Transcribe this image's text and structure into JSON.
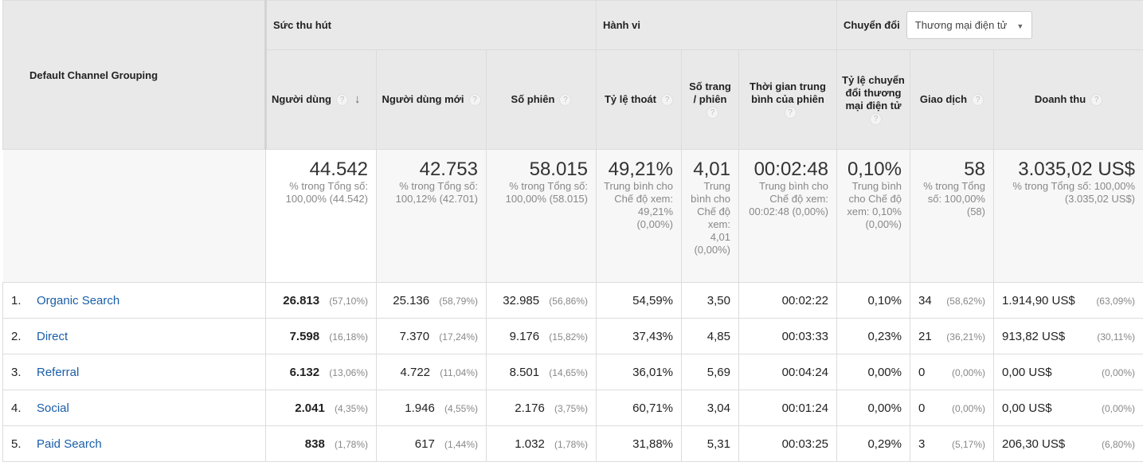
{
  "headers": {
    "dimension": "Default Channel Grouping",
    "groups": {
      "acquisition": "Sức thu hút",
      "behavior": "Hành vi",
      "conversion": "Chuyển đổi"
    },
    "conversion_select": "Thương mại điện tử",
    "columns": [
      "Người dùng",
      "Người dùng mới",
      "Số phiên",
      "Tỷ lệ thoát",
      "Số trang / phiên",
      "Thời gian trung bình của phiên",
      "Tỷ lệ chuyển đổi thương mại điện tử",
      "Giao dịch",
      "Doanh thu"
    ]
  },
  "totals": [
    {
      "value": "44.542",
      "sub": "% trong Tổng số: 100,00% (44.542)"
    },
    {
      "value": "42.753",
      "sub": "% trong Tổng số: 100,12% (42.701)"
    },
    {
      "value": "58.015",
      "sub": "% trong Tổng số: 100,00% (58.015)"
    },
    {
      "value": "49,21%",
      "sub": "Trung bình cho Chế độ xem: 49,21% (0,00%)"
    },
    {
      "value": "4,01",
      "sub": "Trung bình cho Chế độ xem: 4,01 (0,00%)"
    },
    {
      "value": "00:02:48",
      "sub": "Trung bình cho Chế độ xem: 00:02:48 (0,00%)"
    },
    {
      "value": "0,10%",
      "sub": "Trung bình cho Chế độ xem: 0,10% (0,00%)"
    },
    {
      "value": "58",
      "sub": "% trong Tổng số: 100,00% (58)"
    },
    {
      "value": "3.035,02 US$",
      "sub": "% trong Tổng số: 100,00% (3.035,02 US$)"
    }
  ],
  "rows": [
    {
      "idx": "1.",
      "name": "Organic Search",
      "users": "26.813",
      "users_pct": "(57,10%)",
      "new_users": "25.136",
      "new_users_pct": "(58,79%)",
      "sessions": "32.985",
      "sessions_pct": "(56,86%)",
      "bounce": "54,59%",
      "pages": "3,50",
      "duration": "00:02:22",
      "conv": "0,10%",
      "trans": "34",
      "trans_pct": "(58,62%)",
      "revenue": "1.914,90 US$",
      "revenue_pct": "(63,09%)"
    },
    {
      "idx": "2.",
      "name": "Direct",
      "users": "7.598",
      "users_pct": "(16,18%)",
      "new_users": "7.370",
      "new_users_pct": "(17,24%)",
      "sessions": "9.176",
      "sessions_pct": "(15,82%)",
      "bounce": "37,43%",
      "pages": "4,85",
      "duration": "00:03:33",
      "conv": "0,23%",
      "trans": "21",
      "trans_pct": "(36,21%)",
      "revenue": "913,82 US$",
      "revenue_pct": "(30,11%)"
    },
    {
      "idx": "3.",
      "name": "Referral",
      "users": "6.132",
      "users_pct": "(13,06%)",
      "new_users": "4.722",
      "new_users_pct": "(11,04%)",
      "sessions": "8.501",
      "sessions_pct": "(14,65%)",
      "bounce": "36,01%",
      "pages": "5,69",
      "duration": "00:04:24",
      "conv": "0,00%",
      "trans": "0",
      "trans_pct": "(0,00%)",
      "revenue": "0,00 US$",
      "revenue_pct": "(0,00%)"
    },
    {
      "idx": "4.",
      "name": "Social",
      "users": "2.041",
      "users_pct": "(4,35%)",
      "new_users": "1.946",
      "new_users_pct": "(4,55%)",
      "sessions": "2.176",
      "sessions_pct": "(3,75%)",
      "bounce": "60,71%",
      "pages": "3,04",
      "duration": "00:01:24",
      "conv": "0,00%",
      "trans": "0",
      "trans_pct": "(0,00%)",
      "revenue": "0,00 US$",
      "revenue_pct": "(0,00%)"
    },
    {
      "idx": "5.",
      "name": "Paid Search",
      "users": "838",
      "users_pct": "(1,78%)",
      "new_users": "617",
      "new_users_pct": "(1,44%)",
      "sessions": "1.032",
      "sessions_pct": "(1,78%)",
      "bounce": "31,88%",
      "pages": "5,31",
      "duration": "00:03:25",
      "conv": "0,29%",
      "trans": "3",
      "trans_pct": "(5,17%)",
      "revenue": "206,30 US$",
      "revenue_pct": "(6,80%)"
    }
  ]
}
